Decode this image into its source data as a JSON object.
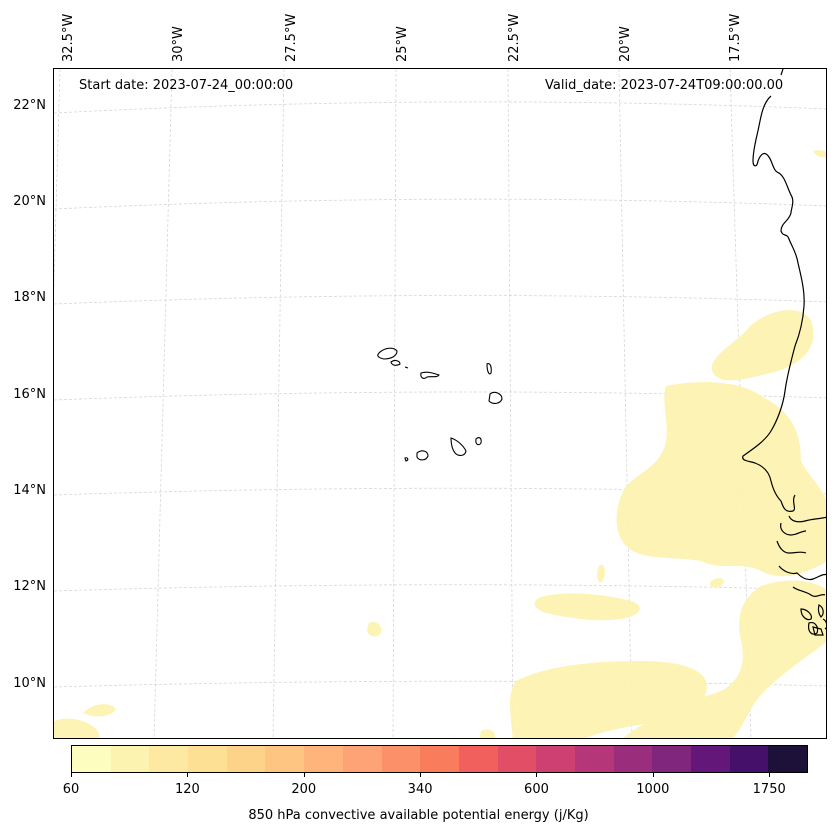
{
  "map": {
    "start_date": "Start date: 2023-07-24_00:00:00",
    "valid_date": "Valid_date: 2023-07-24T09:00:00.00",
    "lat_labels": [
      "22°N",
      "20°N",
      "18°N",
      "16°N",
      "14°N",
      "12°N",
      "10°N"
    ],
    "lon_labels": [
      "32.5°W",
      "30°W",
      "27.5°W",
      "25°W",
      "22.5°W",
      "20°W",
      "17.5°W"
    ],
    "field_color": "#fcf3b0",
    "coastline_color": "#000000",
    "gridline_color": "#cccccc"
  },
  "colorbar": {
    "label": "850 hPa convective available potential energy (j/Kg)",
    "ticks": [
      "60",
      "120",
      "200",
      "340",
      "600",
      "1000",
      "1750"
    ],
    "colors": [
      "#fcfdbf",
      "#fcf3b0",
      "#fde9a2",
      "#fde094",
      "#fdd38a",
      "#fdc581",
      "#feb47b",
      "#fea375",
      "#fc9069",
      "#f97d5d",
      "#f1605d",
      "#e24e65",
      "#cd4071",
      "#b63779",
      "#9b2e7c",
      "#80267c",
      "#621779",
      "#45106a",
      "#1e1139"
    ]
  }
}
